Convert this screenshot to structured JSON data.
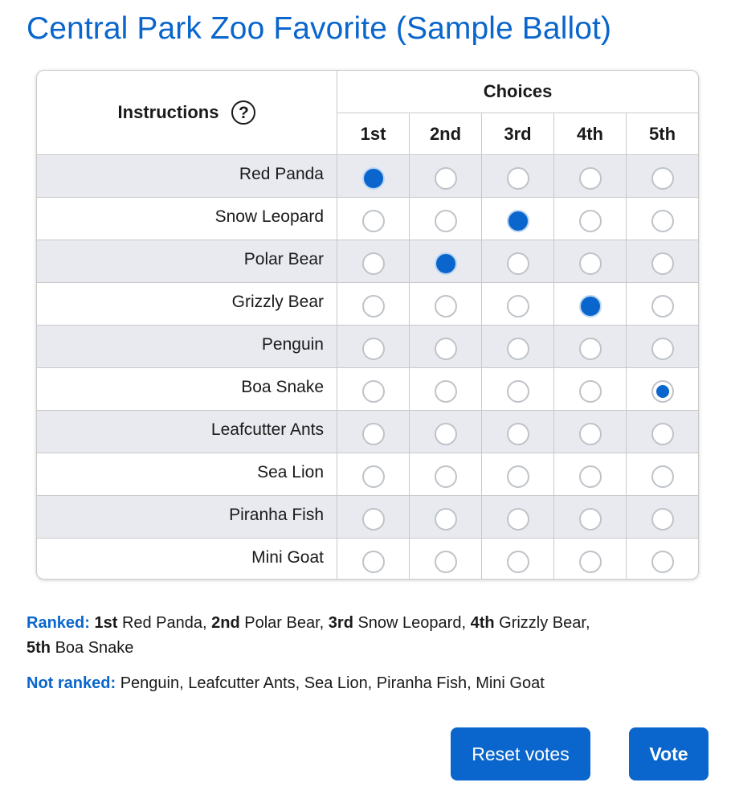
{
  "title": "Central Park Zoo Favorite (Sample Ballot)",
  "table": {
    "instructions_label": "Instructions",
    "help_icon": "question-circle-icon",
    "help_glyph": "?",
    "choices_label": "Choices",
    "ranks": [
      "1st",
      "2nd",
      "3rd",
      "4th",
      "5th"
    ],
    "candidates": [
      {
        "name": "Red Panda",
        "selected_rank": 1
      },
      {
        "name": "Snow Leopard",
        "selected_rank": 3
      },
      {
        "name": "Polar Bear",
        "selected_rank": 2
      },
      {
        "name": "Grizzly Bear",
        "selected_rank": 4
      },
      {
        "name": "Penguin",
        "selected_rank": null
      },
      {
        "name": "Boa Snake",
        "selected_rank": 5
      },
      {
        "name": "Leafcutter Ants",
        "selected_rank": null
      },
      {
        "name": "Sea Lion",
        "selected_rank": null
      },
      {
        "name": "Piranha Fish",
        "selected_rank": null
      },
      {
        "name": "Mini Goat",
        "selected_rank": null
      }
    ]
  },
  "summary": {
    "ranked_label": "Ranked:",
    "ranked": [
      {
        "rank": "1st",
        "name": "Red Panda"
      },
      {
        "rank": "2nd",
        "name": "Polar Bear"
      },
      {
        "rank": "3rd",
        "name": "Snow Leopard"
      },
      {
        "rank": "4th",
        "name": "Grizzly Bear"
      },
      {
        "rank": "5th",
        "name": "Boa Snake"
      }
    ],
    "not_ranked_label": "Not ranked:",
    "not_ranked": "Penguin, Leafcutter Ants, Sea Lion, Piranha Fish, Mini Goat"
  },
  "buttons": {
    "reset_label": "Reset votes",
    "vote_label": "Vote"
  },
  "colors": {
    "accent": "#0a66cc",
    "row_shade": "#e8eaf0",
    "border": "#c9c9c9"
  }
}
